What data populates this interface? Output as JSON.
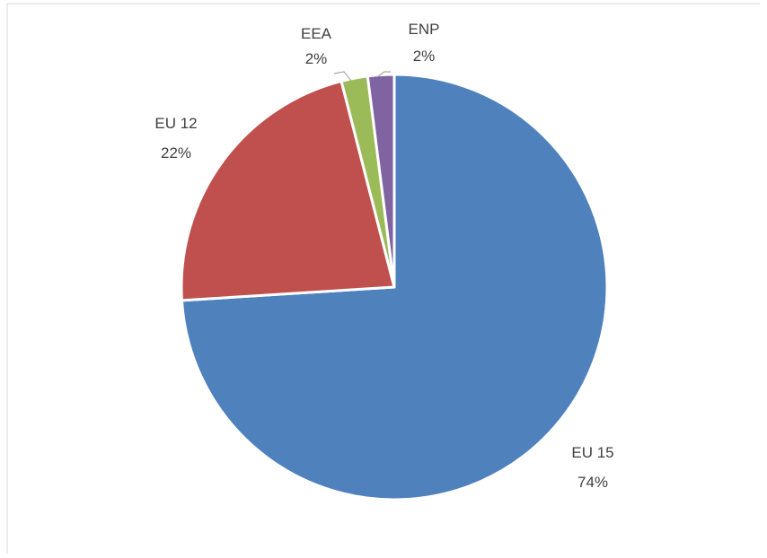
{
  "chart_data": {
    "type": "pie",
    "title": "",
    "slices": [
      {
        "name": "EU 15",
        "value": 74,
        "label": "74%",
        "color": "#4f81bd"
      },
      {
        "name": "EU 12",
        "value": 22,
        "label": "22%",
        "color": "#c0504d"
      },
      {
        "name": "EEA",
        "value": 2,
        "label": "2%",
        "color": "#9bbb59"
      },
      {
        "name": "ENP",
        "value": 2,
        "label": "2%",
        "color": "#8064a2"
      }
    ],
    "start_angle_deg": 0,
    "direction": "clockwise",
    "legend": "none"
  }
}
